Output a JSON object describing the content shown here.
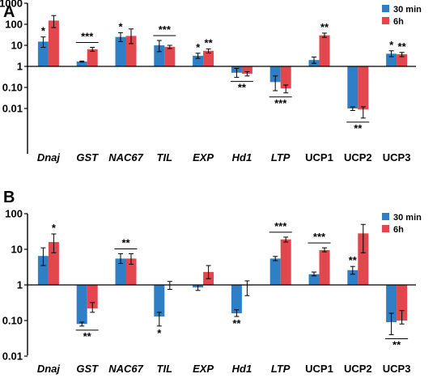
{
  "colors": {
    "series_30min": "#2f7fc6",
    "series_6h": "#e2474d",
    "axis": "#000000"
  },
  "chart_data": [
    {
      "panel": "A",
      "type": "bar",
      "yscale": "log",
      "ylim": [
        0.001,
        1000
      ],
      "yticks": [
        "1000",
        "100",
        "10",
        "1",
        "0.10",
        "0.01"
      ],
      "baseline": 1,
      "legend_position": "top-right",
      "categories": [
        "Dnaj",
        "GST",
        "NAC67",
        "TIL",
        "EXP",
        "Hd1",
        "LTP",
        "UCP1",
        "UCP2",
        "UCP3"
      ],
      "italic": [
        true,
        true,
        true,
        true,
        true,
        true,
        true,
        false,
        false,
        false
      ],
      "series": [
        {
          "name": "30 min",
          "values": [
            15,
            1.7,
            25,
            10,
            3.2,
            0.5,
            0.18,
            2.0,
            0.01,
            4.0
          ],
          "err_low": [
            8,
            1.6,
            15,
            5,
            2.4,
            0.3,
            0.07,
            1.4,
            0.008,
            2.9
          ],
          "err_high": [
            25,
            1.8,
            40,
            17,
            4.2,
            0.8,
            0.35,
            2.8,
            0.012,
            5.5
          ]
        },
        {
          "name": "6h",
          "values": [
            150,
            6.5,
            28,
            8.5,
            5.5,
            0.45,
            0.09,
            30,
            0.009,
            3.8
          ],
          "err_low": [
            70,
            5.2,
            12,
            7,
            4.3,
            0.35,
            0.055,
            24,
            0.0035,
            2.9
          ],
          "err_high": [
            260,
            8.0,
            60,
            10,
            6.8,
            0.56,
            0.13,
            38,
            0.012,
            4.6
          ]
        }
      ],
      "significance": [
        {
          "cat": 0,
          "which": "30min",
          "text": "*",
          "pos": "above"
        },
        {
          "cat": 1,
          "which": "pair",
          "text": "***",
          "pos": "above"
        },
        {
          "cat": 2,
          "which": "30min",
          "text": "*",
          "pos": "above"
        },
        {
          "cat": 3,
          "which": "pair",
          "text": "***",
          "pos": "above"
        },
        {
          "cat": 4,
          "which": "30min",
          "text": "*",
          "pos": "above"
        },
        {
          "cat": 4,
          "which": "6h",
          "text": "**",
          "pos": "above"
        },
        {
          "cat": 5,
          "which": "pair",
          "text": "**",
          "pos": "below"
        },
        {
          "cat": 6,
          "which": "pair",
          "text": "***",
          "pos": "below"
        },
        {
          "cat": 7,
          "which": "6h",
          "text": "**",
          "pos": "above"
        },
        {
          "cat": 8,
          "which": "pair",
          "text": "**",
          "pos": "below"
        },
        {
          "cat": 9,
          "which": "30min",
          "text": "*",
          "pos": "above"
        },
        {
          "cat": 9,
          "which": "6h",
          "text": "**",
          "pos": "above"
        }
      ]
    },
    {
      "panel": "B",
      "type": "bar",
      "yscale": "log",
      "ylim": [
        0.01,
        100
      ],
      "yticks": [
        "100",
        "10",
        "1",
        "0.10",
        "0.01"
      ],
      "baseline": 1,
      "legend_position": "top-right",
      "categories": [
        "Dnaj",
        "GST",
        "NAC67",
        "TIL",
        "EXP",
        "Hd1",
        "LTP",
        "UCP1",
        "UCP2",
        "UCP3"
      ],
      "italic": [
        true,
        true,
        true,
        true,
        true,
        true,
        true,
        false,
        false,
        false
      ],
      "series": [
        {
          "name": "30 min",
          "values": [
            6.5,
            0.08,
            5.5,
            0.13,
            0.85,
            0.16,
            5.5,
            2.0,
            2.6,
            0.09
          ],
          "err_low": [
            3.5,
            0.07,
            4.0,
            0.07,
            0.7,
            0.13,
            4.8,
            1.8,
            2.0,
            0.04
          ],
          "err_high": [
            11,
            0.09,
            7.5,
            0.17,
            1.0,
            0.2,
            6.3,
            2.3,
            3.3,
            0.16
          ]
        },
        {
          "name": "6h",
          "values": [
            16,
            0.22,
            5.5,
            0.98,
            2.3,
            0.97,
            19,
            9.5,
            28,
            0.1
          ],
          "err_low": [
            8,
            0.17,
            3.8,
            0.75,
            1.5,
            0.5,
            16,
            8.5,
            8,
            0.08
          ],
          "err_high": [
            27,
            0.32,
            7.5,
            1.25,
            3.5,
            1.3,
            22,
            11,
            50,
            0.19
          ]
        }
      ],
      "significance": [
        {
          "cat": 0,
          "which": "6h",
          "text": "*",
          "pos": "above"
        },
        {
          "cat": 1,
          "which": "pair",
          "text": "**",
          "pos": "below"
        },
        {
          "cat": 2,
          "which": "pair",
          "text": "**",
          "pos": "above"
        },
        {
          "cat": 3,
          "which": "30min",
          "text": "*",
          "pos": "below"
        },
        {
          "cat": 5,
          "which": "30min",
          "text": "**",
          "pos": "below"
        },
        {
          "cat": 6,
          "which": "pair",
          "text": "***",
          "pos": "above"
        },
        {
          "cat": 7,
          "which": "pair",
          "text": "***",
          "pos": "above"
        },
        {
          "cat": 8,
          "which": "30min",
          "text": "**",
          "pos": "above"
        },
        {
          "cat": 9,
          "which": "pair",
          "text": "**",
          "pos": "below"
        }
      ]
    }
  ]
}
